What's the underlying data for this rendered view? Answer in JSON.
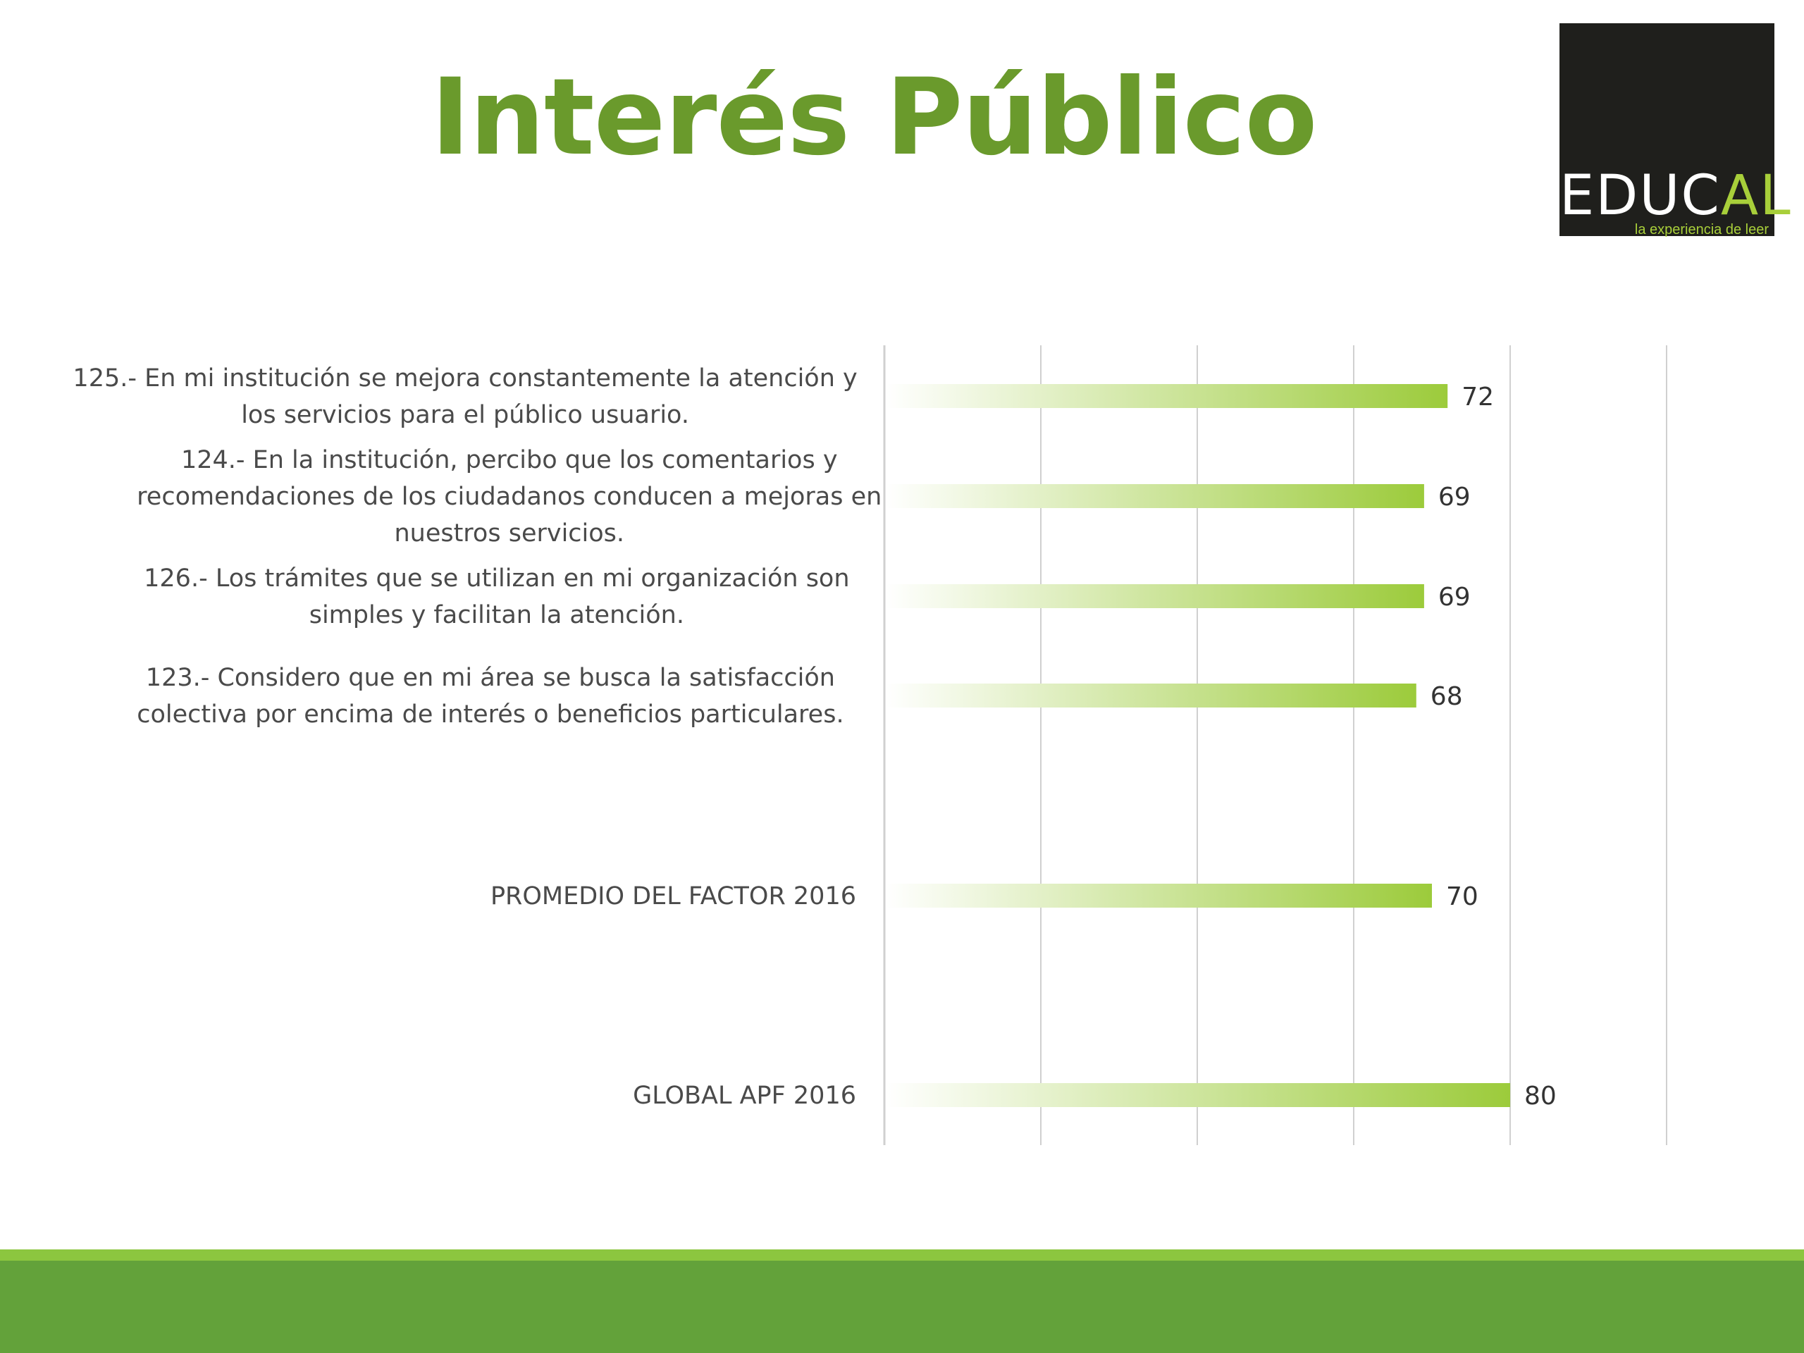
{
  "title": "Interés Público",
  "logo": {
    "text_main": "EDUC",
    "text_accent": "AL",
    "tagline": "la experiencia de leer"
  },
  "colors": {
    "title": "#6a9a2c",
    "bar_start": "#ffffff",
    "bar_end": "#9ccb3b",
    "grid": "#d0d0d0",
    "footer": "#63a23a",
    "footer_accent": "#8cc63f",
    "logo_bg": "#1f1f1c"
  },
  "chart_data": {
    "type": "bar",
    "orientation": "horizontal",
    "categories": [
      [
        "125.- En mi institución se mejora constantemente la atención y",
        "los servicios para el público usuario."
      ],
      [
        "124.- En la institución, percibo que los comentarios y",
        "recomendaciones de los ciudadanos conducen a mejoras en",
        "nuestros servicios."
      ],
      [
        "126.- Los trámites que se utilizan en mi organización son",
        "simples y facilitan la atención."
      ],
      [
        "123.- Considero que en mi área se busca la satisfacción",
        "colectiva por encima de interés o beneficios particulares."
      ],
      [
        "PROMEDIO DEL FACTOR   2016"
      ],
      [
        "GLOBAL APF   2016"
      ]
    ],
    "values": [
      72,
      69,
      69,
      68,
      70,
      80
    ],
    "data_labels": [
      "72",
      "69",
      "69",
      "68",
      "70",
      "80"
    ],
    "xlim": [
      0,
      100
    ],
    "grid": true,
    "legend": "none"
  }
}
